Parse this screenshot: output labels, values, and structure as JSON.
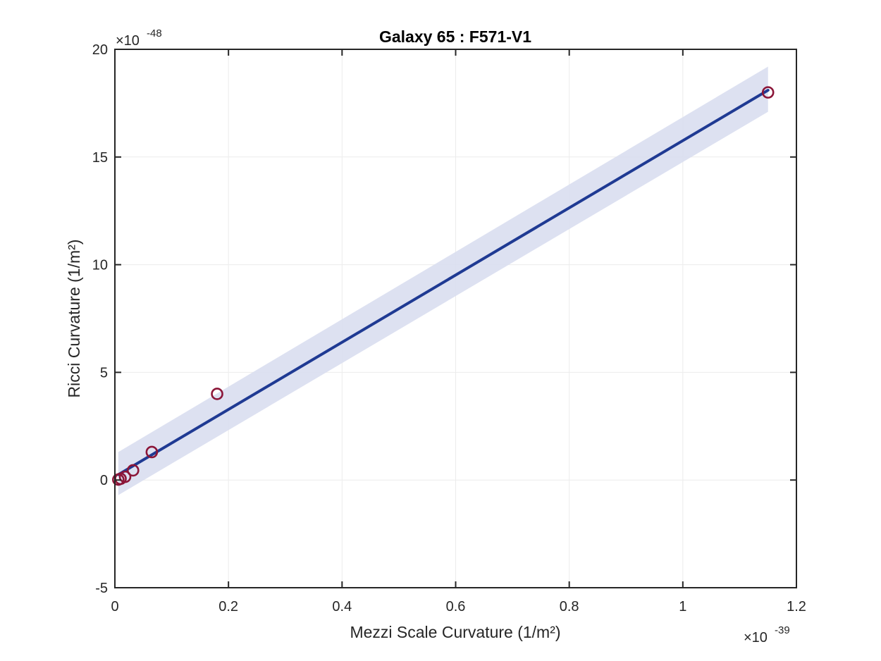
{
  "chart_data": {
    "type": "scatter",
    "title": "Galaxy 65 : F571-V1",
    "xlabel": "Mezzi Scale Curvature (1/m²)",
    "ylabel": "Ricci Curvature (1/m²)",
    "x_multiplier": {
      "prefix": "×10",
      "exponent": "-39"
    },
    "y_multiplier": {
      "prefix": "×10",
      "exponent": "-48"
    },
    "xlim": [
      0,
      1.2
    ],
    "ylim": [
      -5,
      20
    ],
    "xticks": [
      0,
      0.2,
      0.4,
      0.6,
      0.8,
      1,
      1.2
    ],
    "xtick_labels": [
      "0",
      "0.2",
      "0.4",
      "0.6",
      "0.8",
      "1",
      "1.2"
    ],
    "yticks": [
      -5,
      0,
      5,
      10,
      15,
      20
    ],
    "ytick_labels": [
      "-5",
      "0",
      "5",
      "10",
      "15",
      "20"
    ],
    "grid": true,
    "points": [
      {
        "x": 0.006,
        "y": 0.02
      },
      {
        "x": 0.01,
        "y": 0.06
      },
      {
        "x": 0.018,
        "y": 0.15
      },
      {
        "x": 0.032,
        "y": 0.45
      },
      {
        "x": 0.065,
        "y": 1.3
      },
      {
        "x": 0.18,
        "y": 4.0
      },
      {
        "x": 1.15,
        "y": 18.0
      }
    ],
    "fit_line": {
      "x": [
        0.006,
        1.15
      ],
      "y": [
        0.25,
        18.1
      ]
    },
    "confidence_band": {
      "x": [
        0.006,
        1.15
      ],
      "lower": [
        -0.7,
        17.1
      ],
      "upper": [
        1.3,
        19.2
      ]
    },
    "colors": {
      "points": "#8b1538",
      "fit_line": "#1f3a93",
      "band": "#d9def0",
      "grid": "#ececec",
      "axis": "#262626"
    }
  }
}
